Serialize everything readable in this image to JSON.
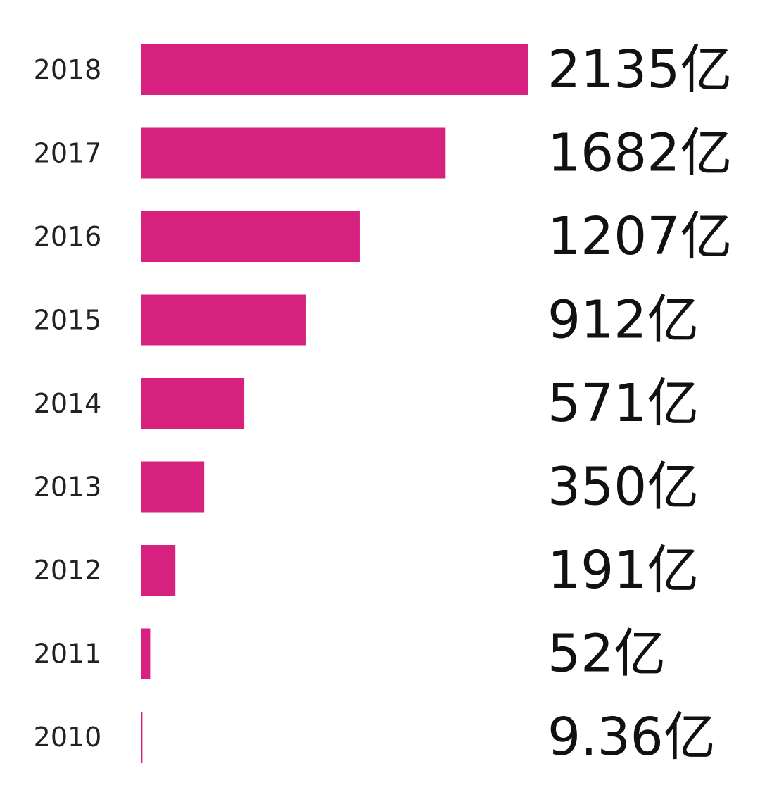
{
  "chart_data": {
    "type": "bar",
    "orientation": "horizontal",
    "categories": [
      "2018",
      "2017",
      "2016",
      "2015",
      "2014",
      "2013",
      "2012",
      "2011",
      "2010"
    ],
    "values": [
      2135,
      1682,
      1207,
      912,
      571,
      350,
      191,
      52,
      9.36
    ],
    "data_labels": [
      "2135亿",
      "1682亿",
      "1207亿",
      "912亿",
      "571亿",
      "350亿",
      "191亿",
      "52亿",
      "9.36亿"
    ],
    "bar_color": "#d6217f",
    "title": "",
    "xlabel": "",
    "ylabel": "",
    "grid": false,
    "legend": "none"
  }
}
